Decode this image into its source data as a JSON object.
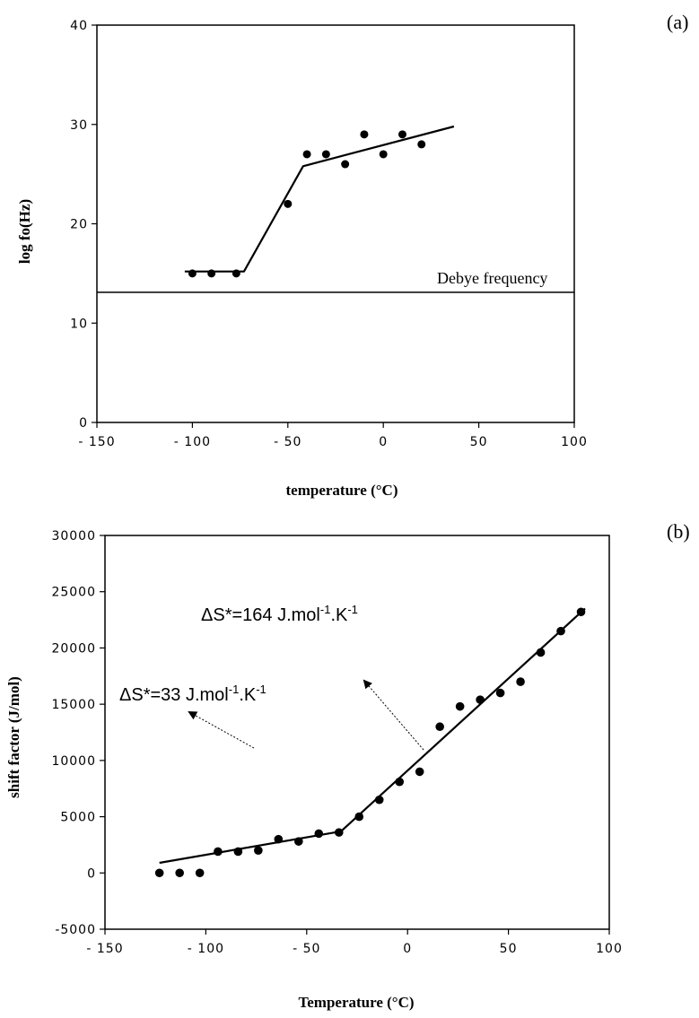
{
  "chart_data": [
    {
      "panel": "(a)",
      "type": "scatter",
      "xlabel": "temperature (°C)",
      "ylabel": "log  fo(Hz)",
      "xlim": [
        -150,
        100
      ],
      "ylim": [
        0,
        40
      ],
      "xticks": [
        "-150",
        "-100",
        "-50",
        "0",
        "50",
        "100"
      ],
      "yticks": [
        "0",
        "10",
        "20",
        "30",
        "40"
      ],
      "grid": false,
      "points": [
        {
          "x": -100,
          "y": 15
        },
        {
          "x": -90,
          "y": 15
        },
        {
          "x": -77,
          "y": 15
        },
        {
          "x": -50,
          "y": 22
        },
        {
          "x": -40,
          "y": 27
        },
        {
          "x": -30,
          "y": 27
        },
        {
          "x": -20,
          "y": 26
        },
        {
          "x": -10,
          "y": 29
        },
        {
          "x": 0,
          "y": 27
        },
        {
          "x": 10,
          "y": 29
        },
        {
          "x": 20,
          "y": 28
        }
      ],
      "fit_line": [
        {
          "x": -104,
          "y": 15.2
        },
        {
          "x": -73,
          "y": 15.2
        },
        {
          "x": -42,
          "y": 25.8
        },
        {
          "x": 37,
          "y": 29.8
        }
      ],
      "reference_line": {
        "y": 13.1,
        "label": "Debye frequency"
      }
    },
    {
      "panel": "(b)",
      "type": "scatter",
      "xlabel": "Temperature (°C)",
      "ylabel": "shift  factor  (J/mol)",
      "xlim": [
        -150,
        100
      ],
      "ylim": [
        -5000,
        30000
      ],
      "xticks": [
        "-150",
        "-100",
        "-50",
        "0",
        "50",
        "100"
      ],
      "yticks": [
        "-5000",
        "0",
        "5000",
        "10000",
        "15000",
        "20000",
        "25000",
        "30000"
      ],
      "grid": false,
      "points": [
        {
          "x": -123,
          "y": 0
        },
        {
          "x": -113,
          "y": 0
        },
        {
          "x": -103,
          "y": 0
        },
        {
          "x": -94,
          "y": 1900
        },
        {
          "x": -84,
          "y": 1900
        },
        {
          "x": -74,
          "y": 2000
        },
        {
          "x": -64,
          "y": 3000
        },
        {
          "x": -54,
          "y": 2800
        },
        {
          "x": -44,
          "y": 3500
        },
        {
          "x": -34,
          "y": 3600
        },
        {
          "x": -24,
          "y": 5000
        },
        {
          "x": -14,
          "y": 6500
        },
        {
          "x": -4,
          "y": 8100
        },
        {
          "x": 6,
          "y": 9000
        },
        {
          "x": 16,
          "y": 13000
        },
        {
          "x": 26,
          "y": 14800
        },
        {
          "x": 36,
          "y": 15400
        },
        {
          "x": 46,
          "y": 16000
        },
        {
          "x": 56,
          "y": 17000
        },
        {
          "x": 66,
          "y": 19600
        },
        {
          "x": 76,
          "y": 21500
        },
        {
          "x": 86,
          "y": 23200
        }
      ],
      "fit_line": [
        {
          "x": -123,
          "y": 900
        },
        {
          "x": -33,
          "y": 3700
        },
        {
          "x": 88,
          "y": 23500
        }
      ],
      "annotations": [
        {
          "text": "ΔS*=33 J.mol",
          "sup1": "-1",
          "mid": ".K",
          "sup2": "-1"
        },
        {
          "text": "ΔS*=164 J.mol",
          "sup1": "-1",
          "mid": ".K",
          "sup2": "-1"
        }
      ]
    }
  ]
}
